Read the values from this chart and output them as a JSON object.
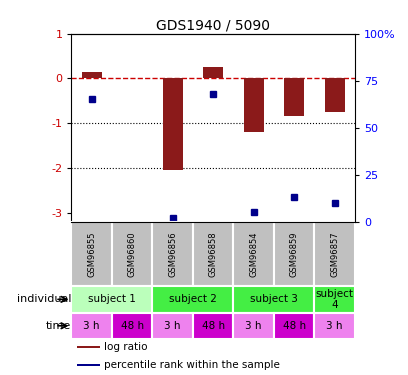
{
  "title": "GDS1940 / 5090",
  "samples": [
    "GSM96855",
    "GSM96860",
    "GSM96856",
    "GSM96858",
    "GSM96854",
    "GSM96859",
    "GSM96857"
  ],
  "log_ratio": [
    0.15,
    0.0,
    -2.05,
    0.25,
    -1.2,
    -0.85,
    -0.75
  ],
  "percentile_rank": [
    65,
    null,
    2,
    68,
    5,
    13,
    10
  ],
  "ylim_left": [
    -3.2,
    1.0
  ],
  "ylim_right": [
    0,
    100
  ],
  "yticks_left": [
    -3,
    -2,
    -1,
    0,
    1
  ],
  "ytick_labels_left": [
    "-3",
    "-2",
    "-1",
    "0",
    "1"
  ],
  "yticks_right": [
    0,
    25,
    50,
    75,
    100
  ],
  "ytick_labels_right": [
    "0",
    "25",
    "50",
    "75",
    "100%"
  ],
  "bar_color": "#8B1A1A",
  "dot_color": "#00008B",
  "dashed_line_color": "#CC0000",
  "ind_colors": [
    "#BBFFBB",
    "#44EE44",
    "#44EE44",
    "#44EE44"
  ],
  "ind_labels": [
    "subject 1",
    "subject 2",
    "subject 3",
    "subject\n4"
  ],
  "ind_ranges": [
    [
      0,
      2
    ],
    [
      2,
      4
    ],
    [
      4,
      6
    ],
    [
      6,
      7
    ]
  ],
  "time_colors": [
    "#EE82EE",
    "#CC00CC",
    "#EE82EE",
    "#CC00CC",
    "#EE82EE",
    "#CC00CC",
    "#EE82EE"
  ],
  "time_labels": [
    "3 h",
    "48 h",
    "3 h",
    "48 h",
    "3 h",
    "48 h",
    "3 h"
  ],
  "legend_items": [
    {
      "label": "log ratio",
      "color": "#8B1A1A"
    },
    {
      "label": "percentile rank within the sample",
      "color": "#00008B"
    }
  ]
}
